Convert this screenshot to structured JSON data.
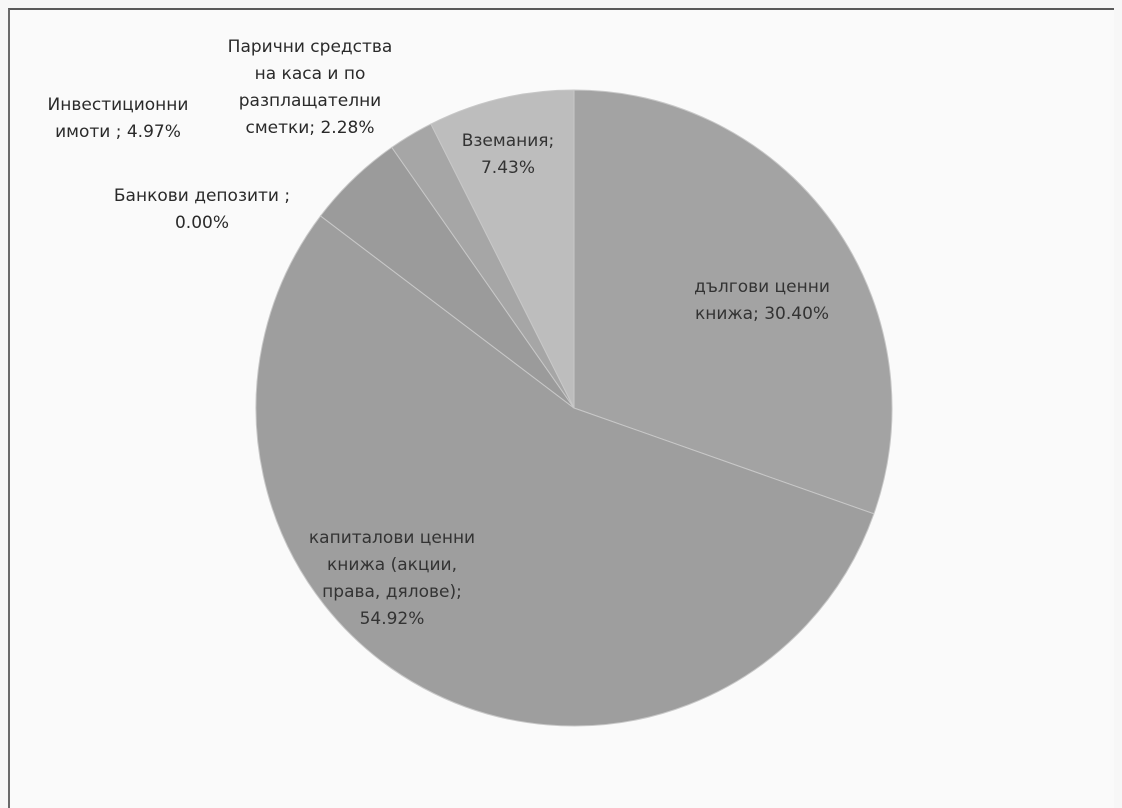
{
  "chart_data": {
    "type": "pie",
    "slices": [
      {
        "label_lines": [
          "дългови ценни",
          "книжа; 30.40%"
        ],
        "value": 30.4,
        "color": "#a3a3a3"
      },
      {
        "label_lines": [
          "капиталови ценни",
          "книжа (акции,",
          "права, дялове);",
          "54.92%"
        ],
        "value": 54.92,
        "color": "#9e9e9e"
      },
      {
        "label_lines": [
          "Банкови депозити ;",
          "0.00%"
        ],
        "value": 0.0,
        "color": "#9a9a9a"
      },
      {
        "label_lines": [
          "Инвестиционни",
          "имоти ; 4.97%"
        ],
        "value": 4.97,
        "color": "#9b9b9b"
      },
      {
        "label_lines": [
          "Парични средства",
          "на каса и по",
          "разплащателни",
          "сметки; 2.28%"
        ],
        "value": 2.28,
        "color": "#a6a6a6"
      },
      {
        "label_lines": [
          "Вземания;",
          "7.43%"
        ],
        "value": 7.43,
        "color": "#bdbdbd"
      }
    ]
  }
}
